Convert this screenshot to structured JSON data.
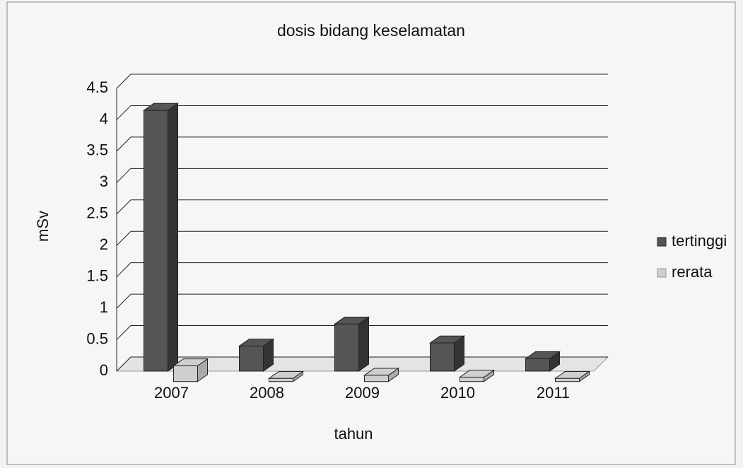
{
  "chart_data": {
    "type": "bar3d",
    "title": "dosis bidang keselamatan",
    "x_label": "tahun",
    "y_label": "mSv",
    "categories": [
      "2007",
      "2008",
      "2009",
      "2010",
      "2011"
    ],
    "series": [
      {
        "name": "tertinggi",
        "color": "#555555",
        "values": [
          4.15,
          0.4,
          0.75,
          0.45,
          0.2
        ]
      },
      {
        "name": "rerata",
        "color": "#cfcfcf",
        "values": [
          0.25,
          0.05,
          0.1,
          0.07,
          0.05
        ]
      }
    ],
    "ylim": [
      0,
      4.5
    ],
    "yticks": [
      0,
      0.5,
      1,
      1.5,
      2,
      2.5,
      3,
      3.5,
      4,
      4.5
    ],
    "grid": true,
    "legend": "right"
  }
}
